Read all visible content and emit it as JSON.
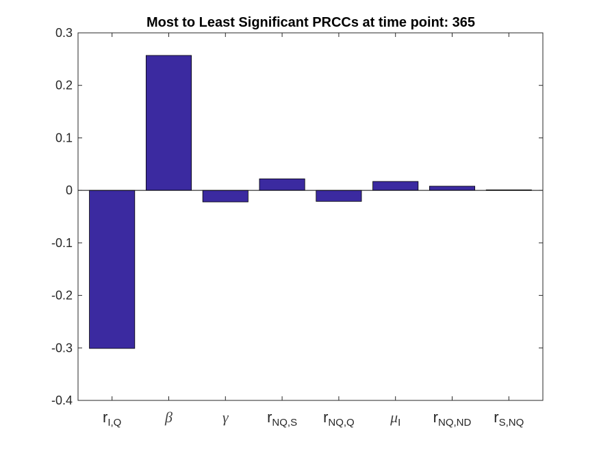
{
  "chart_data": {
    "type": "bar",
    "title": "Most to Least Significant PRCCs at time point: 365",
    "xlabel": "",
    "ylabel": "",
    "ylim": [
      -0.4,
      0.3
    ],
    "yticks": [
      -0.4,
      -0.3,
      -0.2,
      -0.1,
      0,
      0.1,
      0.2,
      0.3
    ],
    "ytick_labels": [
      "-0.4",
      "-0.3",
      "-0.2",
      "-0.1",
      "0",
      "0.1",
      "0.2",
      "0.3"
    ],
    "categories": [
      {
        "base": "r",
        "sub": "I,Q",
        "italic": false
      },
      {
        "base": "β",
        "sub": "",
        "italic": true
      },
      {
        "base": "γ",
        "sub": "",
        "italic": true
      },
      {
        "base": "r",
        "sub": "NQ,S",
        "italic": false
      },
      {
        "base": "r",
        "sub": "NQ,Q",
        "italic": false
      },
      {
        "base": "μ",
        "sub": "I",
        "italic": true
      },
      {
        "base": "r",
        "sub": "NQ,ND",
        "italic": false
      },
      {
        "base": "r",
        "sub": "S,NQ",
        "italic": false
      }
    ],
    "values": [
      -0.301,
      0.257,
      -0.022,
      0.022,
      -0.021,
      0.017,
      0.008,
      0.001
    ],
    "grid": false,
    "bar_color": "#3b2aa0",
    "bar_edge_color": "#000000"
  }
}
